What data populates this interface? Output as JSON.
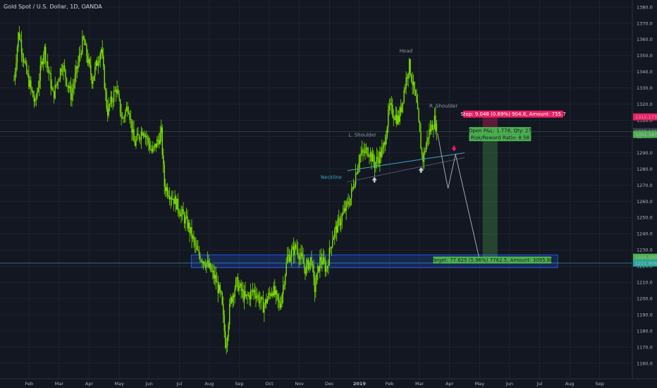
{
  "header": {
    "symbol": "Gold Spot / U.S. Dollar, 1D, OANDA"
  },
  "colors": {
    "background": "#131722",
    "candle": "#7ee000",
    "stop": "#e91e63",
    "target": "#4caf50",
    "neckline": "#3fa7c9",
    "zone": "#2962ff",
    "grid": "#2a2e39",
    "last_price": "#4caf50"
  },
  "chart_data": {
    "type": "candlestick",
    "title": "Gold Spot / U.S. Dollar, 1D, OANDA",
    "ylim": [
      1155,
      1385
    ],
    "xlim": [
      0,
      24
    ],
    "y_ticks": [
      1160,
      1170,
      1180,
      1190,
      1200,
      1210,
      1220,
      1230,
      1240,
      1250,
      1260,
      1270,
      1280,
      1290,
      1300,
      1310,
      1320,
      1330,
      1340,
      1350,
      1360,
      1370,
      1380
    ],
    "x_ticks": [
      {
        "x": 0.5,
        "label": "Feb"
      },
      {
        "x": 1.5,
        "label": "Mar"
      },
      {
        "x": 2.5,
        "label": "Apr"
      },
      {
        "x": 3.5,
        "label": "May"
      },
      {
        "x": 4.5,
        "label": "Jun"
      },
      {
        "x": 5.5,
        "label": "Jul"
      },
      {
        "x": 6.5,
        "label": "Aug"
      },
      {
        "x": 7.5,
        "label": "Sep"
      },
      {
        "x": 8.5,
        "label": "Oct"
      },
      {
        "x": 9.5,
        "label": "Nov"
      },
      {
        "x": 10.5,
        "label": "Dec"
      },
      {
        "x": 11.5,
        "label": "2019"
      },
      {
        "x": 12.5,
        "label": "Feb"
      },
      {
        "x": 13.5,
        "label": "Mar"
      },
      {
        "x": 14.5,
        "label": "Apr"
      },
      {
        "x": 15.5,
        "label": "May"
      },
      {
        "x": 16.5,
        "label": "Jun"
      },
      {
        "x": 17.5,
        "label": "Jul"
      },
      {
        "x": 18.5,
        "label": "Aug"
      },
      {
        "x": 19.5,
        "label": "Sep"
      }
    ],
    "price_path": [
      [
        0,
        1335
      ],
      [
        0.15,
        1365
      ],
      [
        0.4,
        1340
      ],
      [
        0.7,
        1320
      ],
      [
        1.0,
        1355
      ],
      [
        1.3,
        1325
      ],
      [
        1.6,
        1345
      ],
      [
        1.9,
        1325
      ],
      [
        2.3,
        1360
      ],
      [
        2.6,
        1335
      ],
      [
        2.9,
        1355
      ],
      [
        3.1,
        1315
      ],
      [
        3.4,
        1330
      ],
      [
        3.6,
        1310
      ],
      [
        3.8,
        1320
      ],
      [
        4.0,
        1295
      ],
      [
        4.3,
        1305
      ],
      [
        4.6,
        1290
      ],
      [
        4.9,
        1302
      ],
      [
        5.0,
        1270
      ],
      [
        5.3,
        1262
      ],
      [
        5.5,
        1255
      ],
      [
        5.8,
        1245
      ],
      [
        6.1,
        1228
      ],
      [
        6.4,
        1222
      ],
      [
        6.7,
        1212
      ],
      [
        6.9,
        1200
      ],
      [
        7.05,
        1170
      ],
      [
        7.2,
        1198
      ],
      [
        7.4,
        1210
      ],
      [
        7.7,
        1200
      ],
      [
        8.0,
        1205
      ],
      [
        8.3,
        1195
      ],
      [
        8.6,
        1206
      ],
      [
        8.85,
        1195
      ],
      [
        9.1,
        1225
      ],
      [
        9.4,
        1232
      ],
      [
        9.7,
        1218
      ],
      [
        9.9,
        1225
      ],
      [
        10.0,
        1205
      ],
      [
        10.2,
        1225
      ],
      [
        10.4,
        1218
      ],
      [
        10.6,
        1238
      ],
      [
        10.9,
        1250
      ],
      [
        11.2,
        1262
      ],
      [
        11.5,
        1288
      ],
      [
        11.8,
        1292
      ],
      [
        12.0,
        1283
      ],
      [
        12.3,
        1292
      ],
      [
        12.5,
        1318
      ],
      [
        12.8,
        1310
      ],
      [
        13.0,
        1330
      ],
      [
        13.15,
        1345
      ],
      [
        13.4,
        1320
      ],
      [
        13.6,
        1285
      ],
      [
        13.8,
        1302
      ],
      [
        14.0,
        1310
      ],
      [
        14.1,
        1302
      ]
    ],
    "last_price": "1303.125",
    "head_shoulders": {
      "left_shoulder": {
        "label": "L. Shoulder",
        "x": 11.6,
        "y": 1300
      },
      "head": {
        "label": "Head",
        "x": 13.05,
        "y": 1352
      },
      "right_shoulder": {
        "label": "R. Shoulder",
        "x": 14.3,
        "y": 1318
      },
      "neckline": {
        "label": "Neckline",
        "x1": 11.1,
        "y1": 1279,
        "x2": 15.0,
        "y2": 1290
      }
    },
    "position": {
      "stop_label": "Stop: 9.048 (0.69%) 904.8, Amount: 755.7",
      "pnl_label": "Open P&L: 1.778, Qty: 27",
      "rr_label": "Risk/Reward Ratio: 8.58",
      "target_label": "Target: 77.625 (5.96%) 7762.5, Amount: 3095.88",
      "stop_price_label": "1312.173",
      "entry_price_label": "1301.347",
      "target_price_label": "1225.500",
      "zone_price_label": "1221.908",
      "stop": 1312.17,
      "entry": 1301.35,
      "target": 1225.5,
      "x_start": 15.6,
      "x_end": 16.1
    },
    "zone": {
      "y1": 1219,
      "y2": 1227,
      "x1": 5.9,
      "x2": 18.1
    },
    "projection": [
      [
        14.1,
        1302
      ],
      [
        14.3,
        1282
      ],
      [
        14.45,
        1268
      ],
      [
        14.7,
        1289
      ],
      [
        15.5,
        1224
      ]
    ]
  }
}
